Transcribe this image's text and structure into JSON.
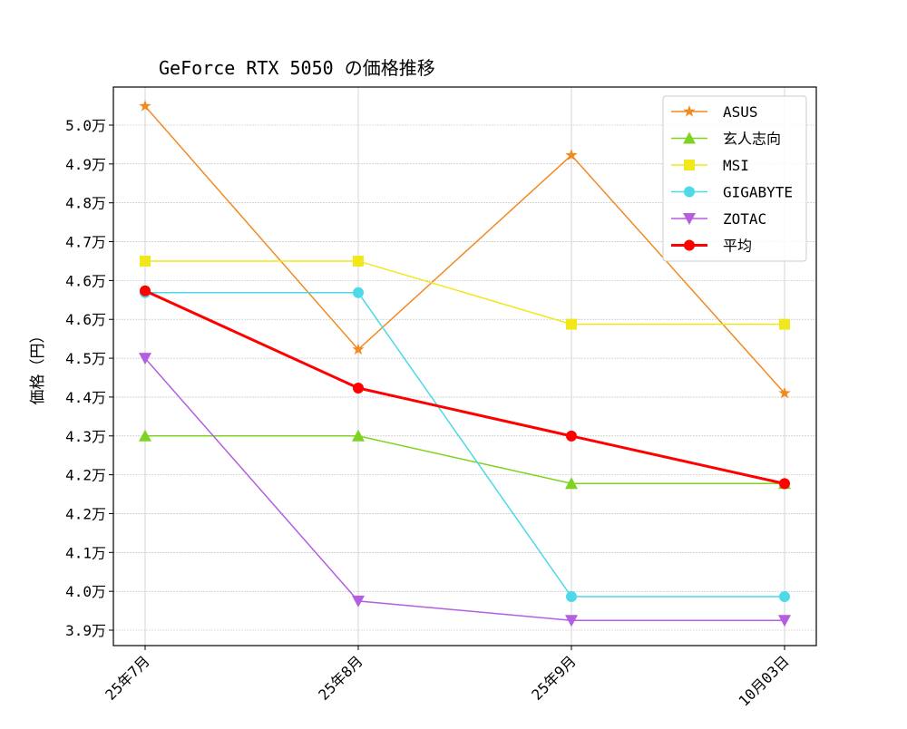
{
  "chart_data": {
    "type": "line",
    "title": "GeForce RTX 5050 の価格推移",
    "xlabel": "",
    "ylabel": "価格（円）",
    "categories": [
      "25年7月",
      "25年8月",
      "25年9月",
      "10月03日"
    ],
    "ylim": [
      38900,
      50400
    ],
    "yticks": [
      39200,
      40000,
      40800,
      41600,
      42400,
      43200,
      44000,
      44800,
      45600,
      46400,
      47200,
      48000,
      48800,
      49600
    ],
    "ytick_labels": [
      "3.9万",
      "4.0万",
      "4.1万",
      "4.2万",
      "4.2万",
      "4.3万",
      "4.4万",
      "4.5万",
      "4.6万",
      "4.6万",
      "4.7万",
      "4.8万",
      "4.9万",
      "5.0万"
    ],
    "grid": true,
    "legend_position": "top-right",
    "series": [
      {
        "name": "ASUS",
        "color": "#f28a22",
        "marker": "star",
        "values": [
          49990,
          44980,
          48980,
          44080
        ]
      },
      {
        "name": "玄人志向",
        "color": "#7ed321",
        "marker": "triangle-up",
        "values": [
          43200,
          43200,
          42220,
          42220
        ]
      },
      {
        "name": "MSI",
        "color": "#f0e81a",
        "marker": "square",
        "values": [
          46800,
          46800,
          45500,
          45500
        ]
      },
      {
        "name": "GIGABYTE",
        "color": "#4dd9e8",
        "marker": "circle",
        "values": [
          46150,
          46150,
          39890,
          39890
        ]
      },
      {
        "name": "ZOTAC",
        "color": "#b45ee0",
        "marker": "triangle-down",
        "values": [
          44800,
          39800,
          39400,
          39400
        ]
      },
      {
        "name": "平均",
        "color": "#ff0000",
        "marker": "circle",
        "bold": true,
        "values": [
          46188,
          44186,
          43198,
          42218
        ]
      }
    ]
  }
}
